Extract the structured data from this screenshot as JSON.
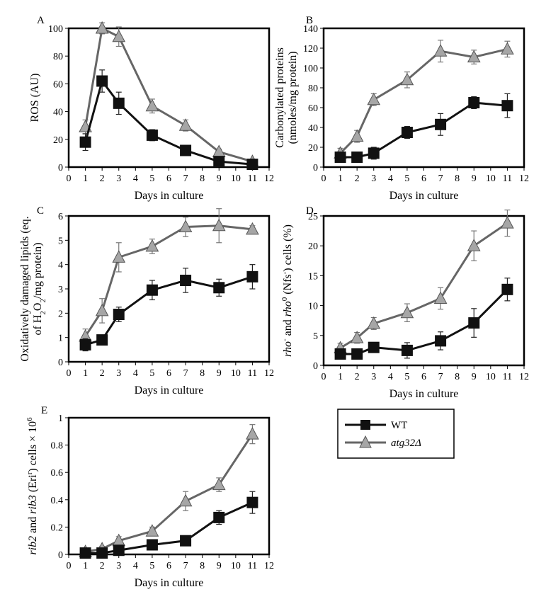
{
  "figure": {
    "legend": {
      "entries": [
        {
          "label": "WT",
          "marker": "square",
          "color": "#111111"
        },
        {
          "label": "atg32Δ",
          "marker": "triangle",
          "color": "#666666",
          "fill": "#a6a6a6",
          "italic": true
        }
      ]
    }
  },
  "chart_data": [
    {
      "panel": "A",
      "type": "line",
      "xlabel": "Days in culture",
      "ylabel": "ROS (AU)",
      "xlim": [
        0,
        12
      ],
      "ylim": [
        0,
        100
      ],
      "xticks": [
        0,
        1,
        2,
        3,
        4,
        5,
        6,
        7,
        8,
        9,
        10,
        11,
        12
      ],
      "yticks": [
        0,
        20,
        40,
        60,
        80,
        100
      ],
      "series": [
        {
          "name": "WT",
          "x": [
            1,
            2,
            3,
            5,
            7,
            9,
            11
          ],
          "values": [
            18,
            62,
            46,
            23,
            12,
            4,
            2
          ],
          "err": [
            6,
            8,
            8,
            4,
            3,
            2,
            1
          ]
        },
        {
          "name": "atg32Δ",
          "x": [
            1,
            2,
            3,
            5,
            7,
            9,
            11
          ],
          "values": [
            29,
            100,
            94,
            44,
            30,
            11,
            4
          ],
          "err": [
            5,
            4,
            7,
            5,
            4,
            2,
            1
          ]
        }
      ]
    },
    {
      "panel": "B",
      "type": "line",
      "xlabel": "Days in culture",
      "ylabel_lines": [
        "Carbonylated proteins",
        "(nmoles/mg protein)"
      ],
      "xlim": [
        0,
        12
      ],
      "ylim": [
        0,
        140
      ],
      "xticks": [
        0,
        1,
        2,
        3,
        4,
        5,
        6,
        7,
        8,
        9,
        10,
        11,
        12
      ],
      "yticks": [
        0,
        20,
        40,
        60,
        80,
        100,
        120,
        140
      ],
      "series": [
        {
          "name": "WT",
          "x": [
            1,
            2,
            3,
            5,
            7,
            9,
            11
          ],
          "values": [
            10,
            10,
            14,
            35,
            43,
            65,
            62
          ],
          "err": [
            3,
            4,
            6,
            6,
            11,
            6,
            12
          ]
        },
        {
          "name": "atg32Δ",
          "x": [
            1,
            2,
            3,
            5,
            7,
            9,
            11
          ],
          "values": [
            14,
            31,
            68,
            88,
            117,
            111,
            119
          ],
          "err": [
            5,
            6,
            6,
            8,
            11,
            7,
            8
          ]
        }
      ]
    },
    {
      "panel": "C",
      "type": "line",
      "xlabel": "Days in culture",
      "ylabel_lines": [
        "Oxidatively damaged lipids (eq.",
        "of H2O2/mg protein)"
      ],
      "xlim": [
        0,
        12
      ],
      "ylim": [
        0,
        6
      ],
      "xticks": [
        0,
        1,
        2,
        3,
        4,
        5,
        6,
        7,
        8,
        9,
        10,
        11,
        12
      ],
      "yticks": [
        0,
        1,
        2,
        3,
        4,
        5,
        6
      ],
      "series": [
        {
          "name": "WT",
          "x": [
            1,
            2,
            3,
            5,
            7,
            9,
            11
          ],
          "values": [
            0.7,
            0.9,
            1.95,
            2.95,
            3.35,
            3.05,
            3.5
          ],
          "err": [
            0.25,
            0.15,
            0.3,
            0.4,
            0.5,
            0.35,
            0.5
          ]
        },
        {
          "name": "atg32Δ",
          "x": [
            1,
            2,
            3,
            5,
            7,
            9,
            11
          ],
          "values": [
            1.05,
            2.1,
            4.3,
            4.75,
            5.55,
            5.6,
            5.45
          ],
          "err": [
            0.3,
            0.5,
            0.6,
            0.3,
            0.4,
            0.7,
            0.15
          ]
        }
      ]
    },
    {
      "panel": "D",
      "type": "line",
      "xlabel": "Days in culture",
      "ylabel_rich": [
        "rho",
        "-",
        " and ",
        "rho",
        "0",
        " (Nfs",
        "-",
        ") cells (%)"
      ],
      "xlim": [
        0,
        12
      ],
      "ylim": [
        0,
        25
      ],
      "xticks": [
        0,
        1,
        2,
        3,
        4,
        5,
        6,
        7,
        8,
        9,
        10,
        11,
        12
      ],
      "yticks": [
        0,
        5,
        10,
        15,
        20,
        25
      ],
      "series": [
        {
          "name": "WT",
          "x": [
            1,
            2,
            3,
            5,
            7,
            9,
            11
          ],
          "values": [
            1.9,
            1.9,
            3.0,
            2.5,
            4.1,
            7.1,
            12.7
          ],
          "err": [
            0.7,
            0.8,
            0.7,
            1.3,
            1.5,
            2.4,
            1.9
          ]
        },
        {
          "name": "atg32Δ",
          "x": [
            1,
            2,
            3,
            5,
            7,
            9,
            11
          ],
          "values": [
            2.9,
            4.6,
            7.0,
            8.8,
            11.2,
            20.0,
            23.8
          ],
          "err": [
            0.8,
            0.9,
            1.0,
            1.5,
            1.8,
            2.5,
            2.2
          ]
        }
      ]
    },
    {
      "panel": "E",
      "type": "line",
      "xlabel": "Days in culture",
      "ylabel_rich": [
        "rib2",
        " and ",
        "rib3",
        "  (Eri",
        "r",
        ") cells × 10",
        "6"
      ],
      "xlim": [
        0,
        12
      ],
      "ylim": [
        0,
        1
      ],
      "xticks": [
        0,
        1,
        2,
        3,
        4,
        5,
        6,
        7,
        8,
        9,
        10,
        11,
        12
      ],
      "yticks": [
        0,
        0.2,
        0.4,
        0.6,
        0.8,
        1
      ],
      "ytick_labels": [
        "0",
        "0.2",
        "0.4",
        "0.6",
        "0.8",
        "1"
      ],
      "series": [
        {
          "name": "WT",
          "x": [
            1,
            2,
            3,
            5,
            7,
            9,
            11
          ],
          "values": [
            0.01,
            0.01,
            0.03,
            0.07,
            0.1,
            0.27,
            0.38
          ],
          "err": [
            0.01,
            0.01,
            0.01,
            0.01,
            0.01,
            0.05,
            0.08
          ]
        },
        {
          "name": "atg32Δ",
          "x": [
            1,
            2,
            3,
            5,
            7,
            9,
            11
          ],
          "values": [
            0.02,
            0.04,
            0.1,
            0.17,
            0.39,
            0.51,
            0.88
          ],
          "err": [
            0.01,
            0.02,
            0.03,
            0.03,
            0.07,
            0.05,
            0.07
          ]
        }
      ]
    }
  ]
}
